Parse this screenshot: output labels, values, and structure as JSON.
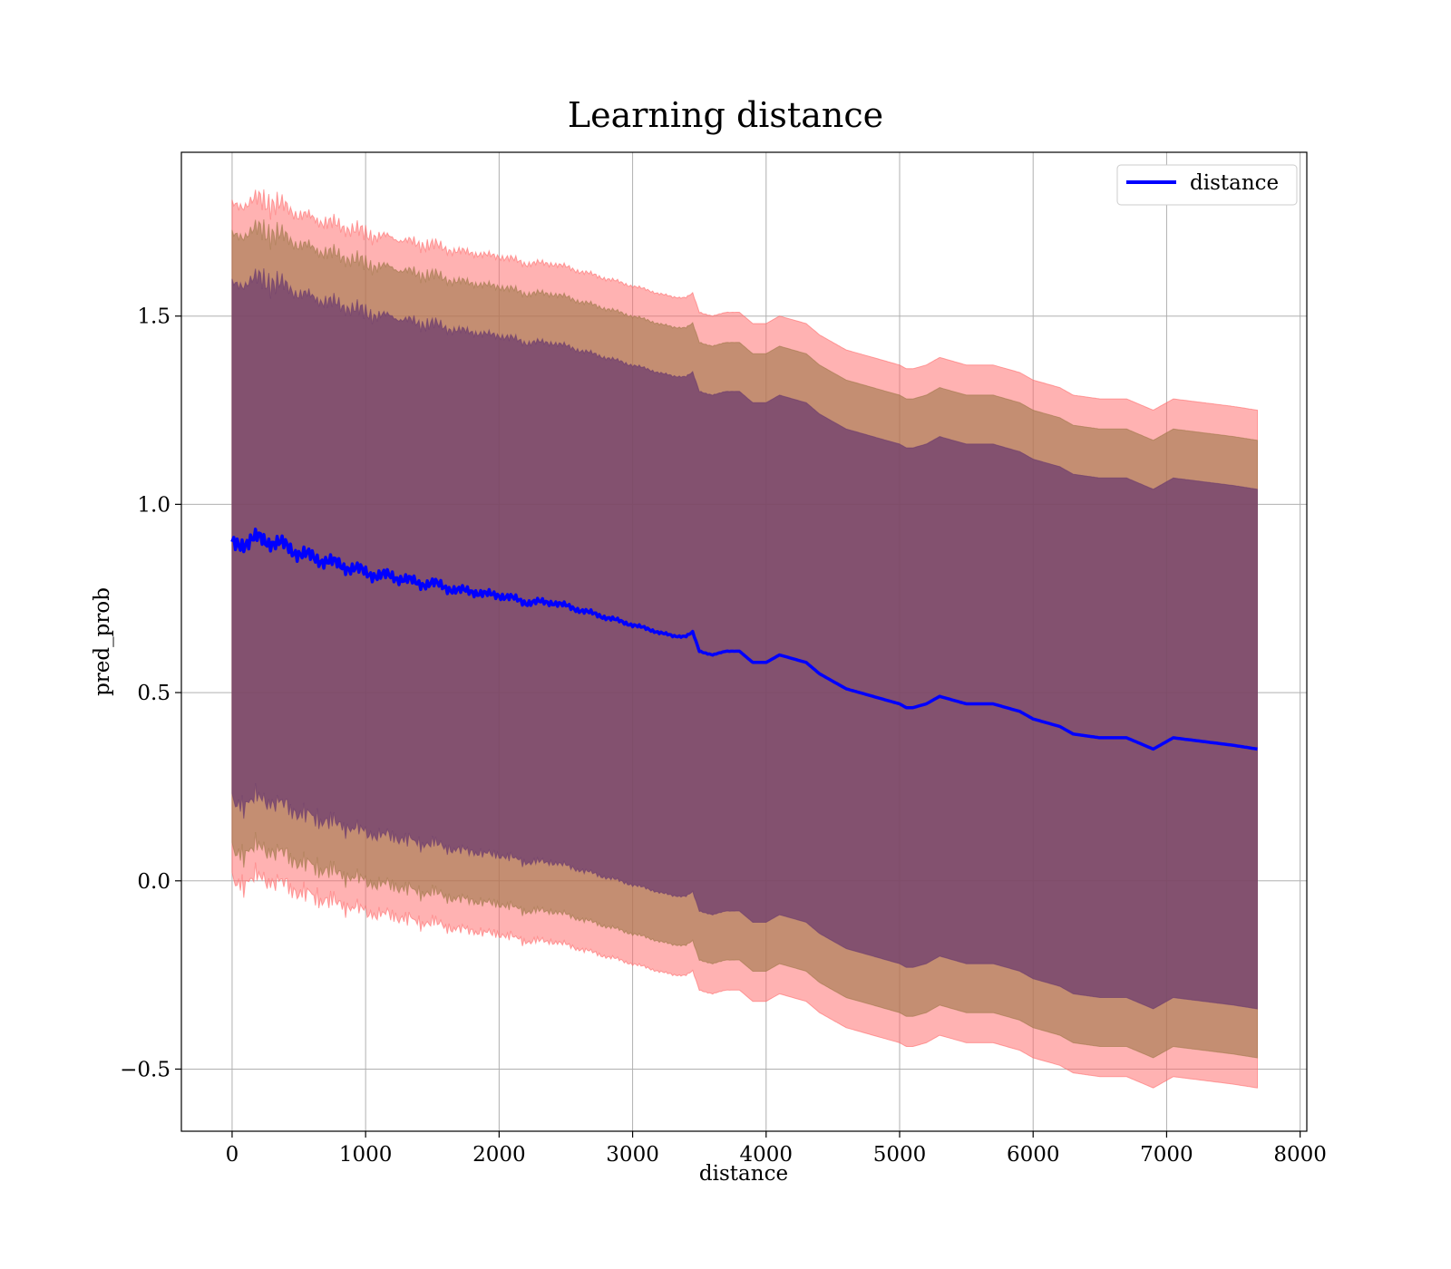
{
  "chart_data": {
    "type": "line",
    "title": "Learning distance",
    "xlabel": "distance",
    "ylabel": "pred_prob",
    "xlim": [
      -380,
      8050
    ],
    "ylim": [
      -0.665,
      1.935
    ],
    "xticks": [
      0,
      1000,
      2000,
      3000,
      4000,
      5000,
      6000,
      7000,
      8000
    ],
    "yticks": [
      -0.5,
      0.0,
      0.5,
      1.0,
      1.5
    ],
    "ytick_labels": [
      "−0.5",
      "0.0",
      "0.5",
      "1.0",
      "1.5"
    ],
    "grid": true,
    "legend": {
      "position": "top-right",
      "entries": [
        "distance"
      ]
    },
    "colors": {
      "line": "#0000ff",
      "band_outer": "#ff6b6b",
      "band_mid": "#a0784a",
      "band_inner": "#6a3a6e"
    },
    "series": [
      {
        "name": "distance",
        "x": [
          0,
          100,
          200,
          300,
          400,
          500,
          600,
          700,
          800,
          900,
          1000,
          1100,
          1200,
          1300,
          1400,
          1500,
          1600,
          1700,
          1800,
          1900,
          2000,
          2100,
          2200,
          2300,
          2400,
          2500,
          2600,
          2700,
          2800,
          2900,
          3000,
          3100,
          3200,
          3300,
          3400,
          3450,
          3500,
          3600,
          3700,
          3800,
          3900,
          4000,
          4100,
          4200,
          4300,
          4400,
          4500,
          4600,
          4700,
          4800,
          4900,
          5000,
          5050,
          5100,
          5200,
          5250,
          5300,
          5400,
          5500,
          5600,
          5700,
          5800,
          5900,
          6000,
          6100,
          6200,
          6250,
          6300,
          6500,
          6700,
          6900,
          7050,
          7500,
          7680
        ],
        "y": [
          0.89,
          0.9,
          0.91,
          0.9,
          0.89,
          0.87,
          0.86,
          0.85,
          0.84,
          0.83,
          0.82,
          0.81,
          0.81,
          0.8,
          0.79,
          0.79,
          0.78,
          0.77,
          0.77,
          0.76,
          0.76,
          0.75,
          0.74,
          0.74,
          0.74,
          0.73,
          0.72,
          0.71,
          0.7,
          0.69,
          0.68,
          0.67,
          0.66,
          0.65,
          0.65,
          0.66,
          0.61,
          0.6,
          0.61,
          0.61,
          0.58,
          0.58,
          0.6,
          0.59,
          0.58,
          0.55,
          0.53,
          0.51,
          0.5,
          0.49,
          0.48,
          0.47,
          0.46,
          0.46,
          0.47,
          0.48,
          0.49,
          0.48,
          0.47,
          0.47,
          0.47,
          0.46,
          0.45,
          0.43,
          0.42,
          0.41,
          0.4,
          0.39,
          0.38,
          0.38,
          0.35,
          0.38,
          0.36,
          0.35
        ]
      }
    ],
    "bands": [
      {
        "name": "band_outer",
        "upper_offset": 0.9,
        "lower_offset": 0.9
      },
      {
        "name": "band_mid",
        "upper_offset": 0.82,
        "lower_offset": 0.82
      },
      {
        "name": "band_inner",
        "upper_offset": 0.69,
        "lower_offset": 0.69
      }
    ]
  }
}
